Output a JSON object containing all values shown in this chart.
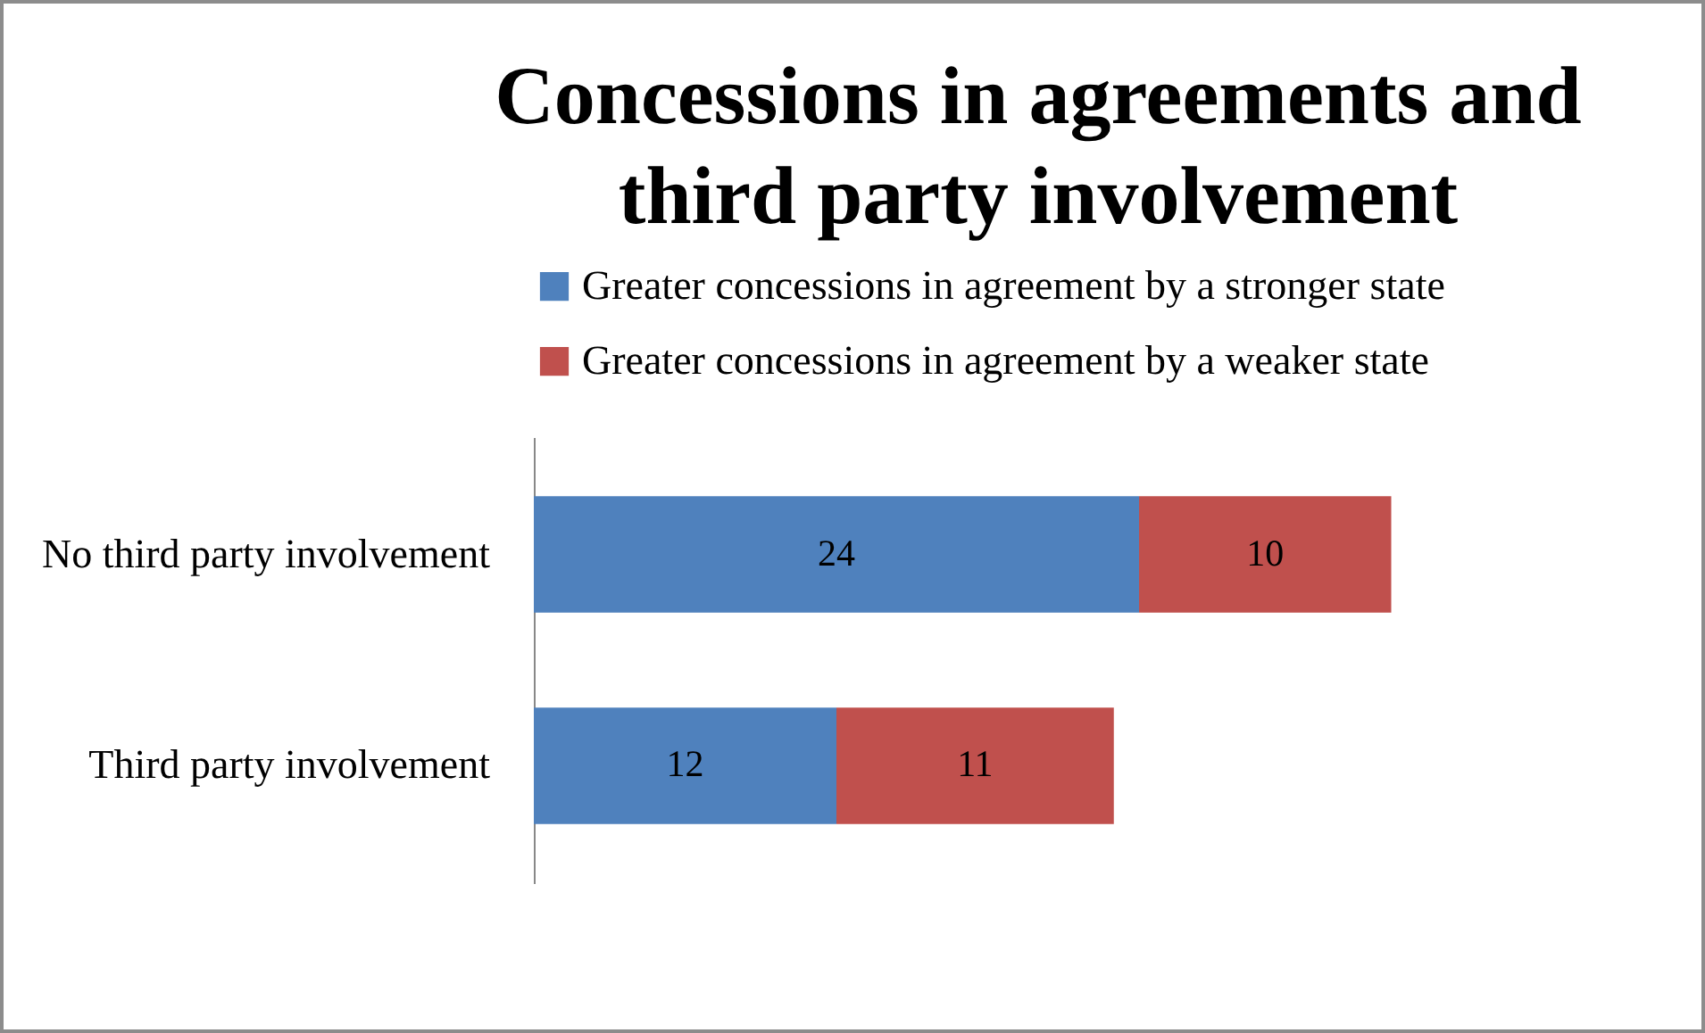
{
  "chart_data": {
    "type": "bar",
    "orientation": "horizontal",
    "stacked": true,
    "data_labels": true,
    "legend": "top",
    "title": "Concessions in agreements and third party involvement",
    "categories": [
      "No third party involvement",
      "Third party involvement"
    ],
    "series": [
      {
        "name": "Greater concessions in agreement by a stronger state",
        "color": "#4f81bd",
        "values": [
          24,
          12
        ]
      },
      {
        "name": "Greater concessions in agreement by a weaker state",
        "color": "#c0504d",
        "values": [
          10,
          11
        ]
      }
    ]
  }
}
